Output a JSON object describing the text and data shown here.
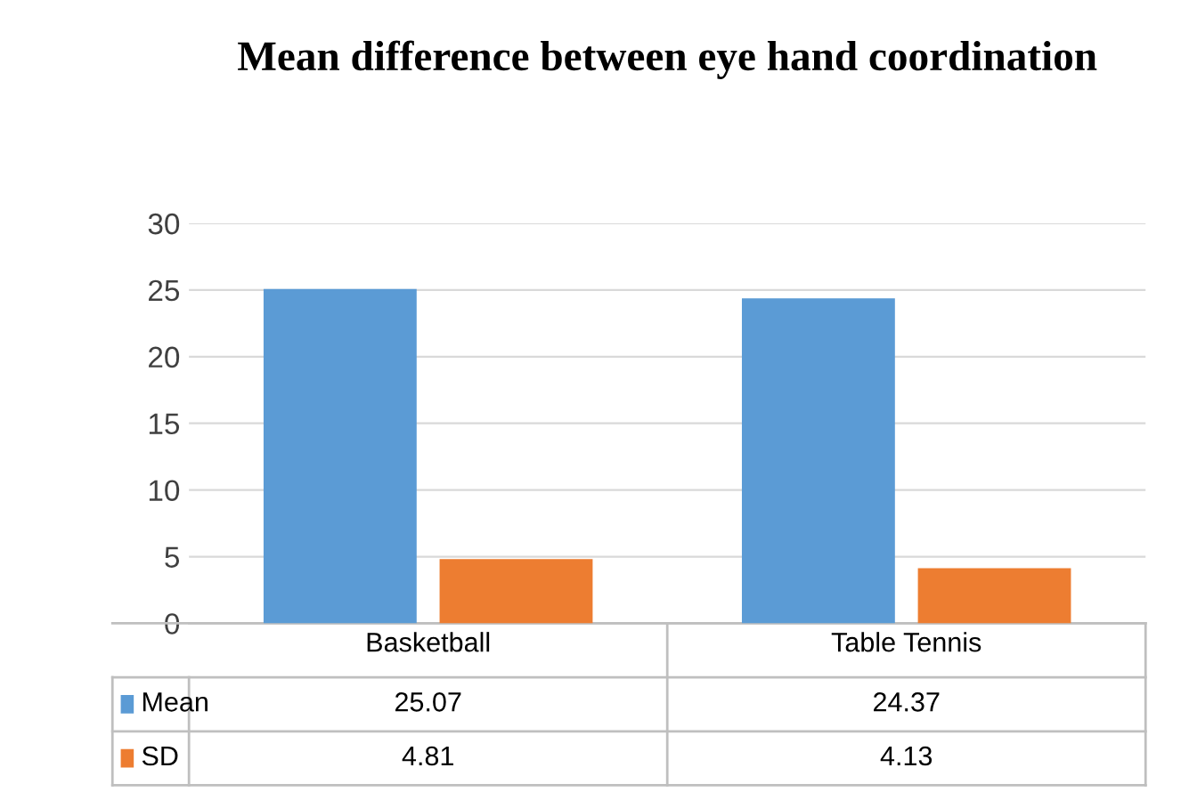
{
  "chart_data": {
    "type": "bar",
    "title": "Mean difference between eye hand coordination",
    "categories": [
      "Basketball",
      "Table Tennis"
    ],
    "series": [
      {
        "name": "Mean",
        "color": "#5b9bd5",
        "values": [
          25.07,
          24.37
        ]
      },
      {
        "name": "SD",
        "color": "#ed7d31",
        "values": [
          4.81,
          4.13
        ]
      }
    ],
    "ylim": [
      0,
      30
    ],
    "yticks": [
      0,
      5,
      10,
      15,
      20,
      25,
      30
    ],
    "grid": "y",
    "legend": "bottom",
    "data_labels": true
  }
}
